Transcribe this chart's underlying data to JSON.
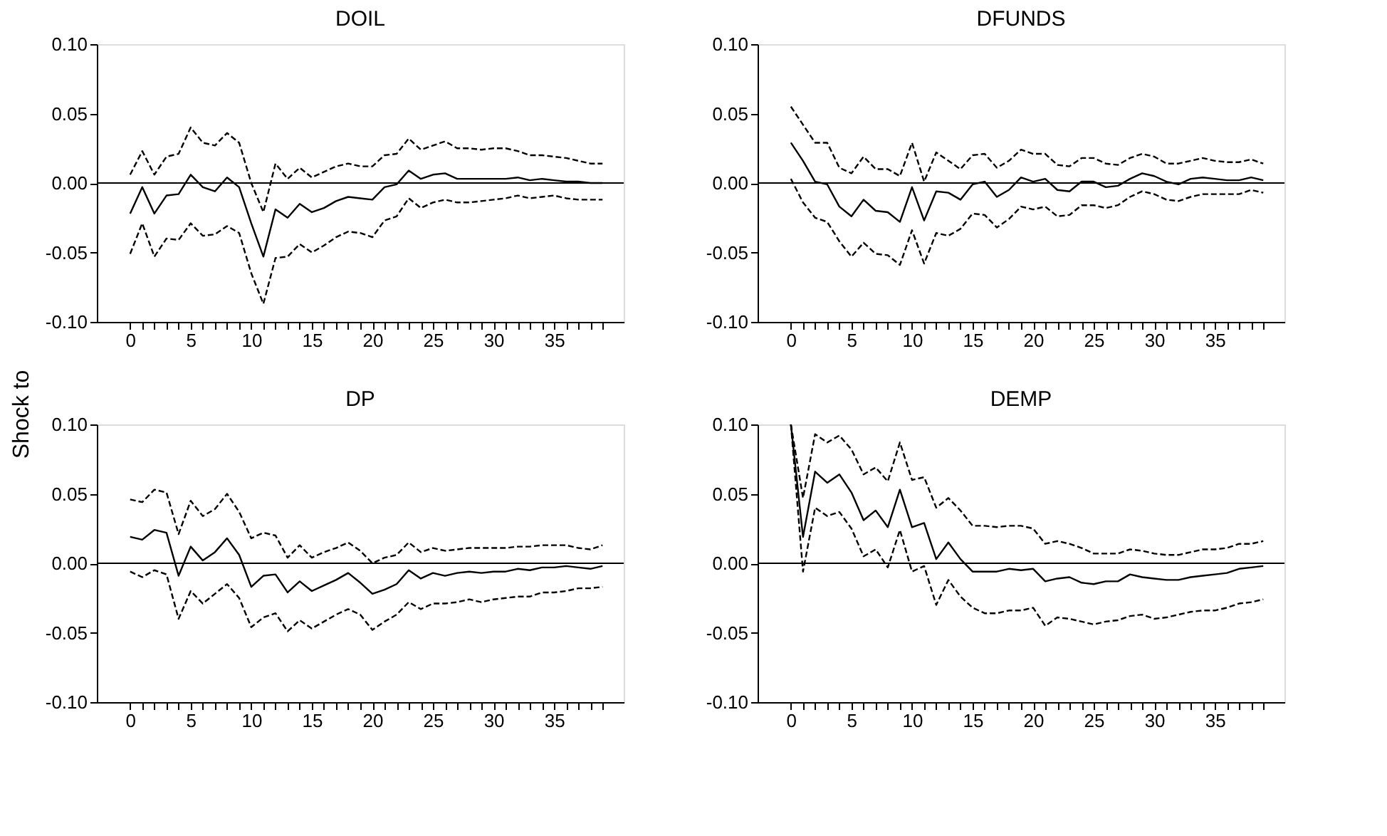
{
  "chart_data": [
    {
      "type": "line",
      "title": "DOIL",
      "ylabel": "Shock to",
      "x": [
        0,
        1,
        2,
        3,
        4,
        5,
        6,
        7,
        8,
        9,
        10,
        11,
        12,
        13,
        14,
        15,
        16,
        17,
        18,
        19,
        20,
        21,
        22,
        23,
        24,
        25,
        26,
        27,
        28,
        29,
        30,
        31,
        32,
        33,
        34,
        35,
        36,
        37,
        38,
        39
      ],
      "xlim": [
        -2.75,
        40.75
      ],
      "ylim": [
        -0.1,
        0.1
      ],
      "yticks": [
        {
          "value": -0.1,
          "label": "-0.10"
        },
        {
          "value": -0.05,
          "label": "-0.05"
        },
        {
          "value": 0,
          "label": "0.00"
        },
        {
          "value": 0.05,
          "label": "0.05"
        },
        {
          "value": 0.1,
          "label": "0.10"
        }
      ],
      "xticks": [
        0,
        {
          "value": 1,
          "label": null
        },
        {
          "value": 2,
          "label": null
        },
        {
          "value": 3,
          "label": null
        },
        {
          "value": 4,
          "label": null
        },
        5,
        {
          "value": 6,
          "label": null
        },
        {
          "value": 7,
          "label": null
        },
        {
          "value": 8,
          "label": null
        },
        {
          "value": 9,
          "label": null
        },
        10,
        {
          "value": 11,
          "label": null
        },
        {
          "value": 12,
          "label": null
        },
        {
          "value": 13,
          "label": null
        },
        {
          "value": 14,
          "label": null
        },
        15,
        {
          "value": 16,
          "label": null
        },
        {
          "value": 17,
          "label": null
        },
        {
          "value": 18,
          "label": null
        },
        {
          "value": 19,
          "label": null
        },
        20,
        {
          "value": 21,
          "label": null
        },
        {
          "value": 22,
          "label": null
        },
        {
          "value": 23,
          "label": null
        },
        {
          "value": 24,
          "label": null
        },
        25,
        {
          "value": 26,
          "label": null
        },
        {
          "value": 27,
          "label": null
        },
        {
          "value": 28,
          "label": null
        },
        {
          "value": 29,
          "label": null
        },
        30,
        {
          "value": 31,
          "label": null
        },
        {
          "value": 32,
          "label": null
        },
        {
          "value": 33,
          "label": null
        },
        {
          "value": 34,
          "label": null
        },
        35,
        {
          "value": 36,
          "label": null
        },
        {
          "value": 37,
          "label": null
        },
        {
          "value": 38,
          "label": null
        },
        {
          "value": 39,
          "label": null
        }
      ],
      "grid": false,
      "legend": false,
      "marker": "none",
      "ref_lines": [
        {
          "axis": "y",
          "value": 0,
          "color": "#000000"
        }
      ],
      "series": [
        {
          "color": "#000000",
          "line_style": "solid",
          "values": [
            -0.022,
            -0.003,
            -0.022,
            -0.009,
            -0.008,
            0.006,
            -0.003,
            -0.006,
            0.004,
            -0.003,
            -0.029,
            -0.053,
            -0.019,
            -0.025,
            -0.015,
            -0.021,
            -0.018,
            -0.013,
            -0.01,
            -0.011,
            -0.012,
            -0.003,
            -0.001,
            0.009,
            0.003,
            0.006,
            0.007,
            0.003,
            0.003,
            0.003,
            0.003,
            0.003,
            0.004,
            0.002,
            0.003,
            0.002,
            0.001,
            0.001,
            0.0,
            0.0
          ]
        },
        {
          "color": "#000000",
          "line_style": "dashed",
          "values": [
            0.006,
            0.023,
            0.006,
            0.019,
            0.021,
            0.04,
            0.029,
            0.027,
            0.036,
            0.029,
            0.0,
            -0.021,
            0.014,
            0.003,
            0.011,
            0.004,
            0.008,
            0.012,
            0.014,
            0.012,
            0.012,
            0.02,
            0.021,
            0.032,
            0.024,
            0.027,
            0.03,
            0.025,
            0.025,
            0.024,
            0.025,
            0.025,
            0.023,
            0.02,
            0.02,
            0.019,
            0.018,
            0.016,
            0.014,
            0.014
          ]
        },
        {
          "color": "#000000",
          "line_style": "dashed",
          "values": [
            -0.051,
            -0.029,
            -0.053,
            -0.04,
            -0.041,
            -0.029,
            -0.038,
            -0.037,
            -0.031,
            -0.036,
            -0.065,
            -0.087,
            -0.054,
            -0.053,
            -0.044,
            -0.05,
            -0.045,
            -0.039,
            -0.035,
            -0.036,
            -0.039,
            -0.027,
            -0.024,
            -0.011,
            -0.018,
            -0.014,
            -0.012,
            -0.014,
            -0.014,
            -0.013,
            -0.012,
            -0.011,
            -0.009,
            -0.011,
            -0.01,
            -0.009,
            -0.011,
            -0.012,
            -0.012,
            -0.012
          ]
        }
      ]
    },
    {
      "type": "line",
      "title": "DFUNDS",
      "x": [
        0,
        1,
        2,
        3,
        4,
        5,
        6,
        7,
        8,
        9,
        10,
        11,
        12,
        13,
        14,
        15,
        16,
        17,
        18,
        19,
        20,
        21,
        22,
        23,
        24,
        25,
        26,
        27,
        28,
        29,
        30,
        31,
        32,
        33,
        34,
        35,
        36,
        37,
        38,
        39
      ],
      "xlim": [
        -2.75,
        40.75
      ],
      "ylim": [
        -0.1,
        0.1
      ],
      "yticks": [
        {
          "value": -0.1,
          "label": "-0.10"
        },
        {
          "value": -0.05,
          "label": "-0.05"
        },
        {
          "value": 0,
          "label": "0.00"
        },
        {
          "value": 0.05,
          "label": "0.05"
        },
        {
          "value": 0.1,
          "label": "0.10"
        }
      ],
      "xticks": [
        0,
        {
          "value": 1,
          "label": null
        },
        {
          "value": 2,
          "label": null
        },
        {
          "value": 3,
          "label": null
        },
        {
          "value": 4,
          "label": null
        },
        5,
        {
          "value": 6,
          "label": null
        },
        {
          "value": 7,
          "label": null
        },
        {
          "value": 8,
          "label": null
        },
        {
          "value": 9,
          "label": null
        },
        10,
        {
          "value": 11,
          "label": null
        },
        {
          "value": 12,
          "label": null
        },
        {
          "value": 13,
          "label": null
        },
        {
          "value": 14,
          "label": null
        },
        15,
        {
          "value": 16,
          "label": null
        },
        {
          "value": 17,
          "label": null
        },
        {
          "value": 18,
          "label": null
        },
        {
          "value": 19,
          "label": null
        },
        20,
        {
          "value": 21,
          "label": null
        },
        {
          "value": 22,
          "label": null
        },
        {
          "value": 23,
          "label": null
        },
        {
          "value": 24,
          "label": null
        },
        25,
        {
          "value": 26,
          "label": null
        },
        {
          "value": 27,
          "label": null
        },
        {
          "value": 28,
          "label": null
        },
        {
          "value": 29,
          "label": null
        },
        30,
        {
          "value": 31,
          "label": null
        },
        {
          "value": 32,
          "label": null
        },
        {
          "value": 33,
          "label": null
        },
        {
          "value": 34,
          "label": null
        },
        35,
        {
          "value": 36,
          "label": null
        },
        {
          "value": 37,
          "label": null
        },
        {
          "value": 38,
          "label": null
        },
        {
          "value": 39,
          "label": null
        }
      ],
      "grid": false,
      "legend": false,
      "marker": "none",
      "ref_lines": [
        {
          "axis": "y",
          "value": 0,
          "color": "#000000"
        }
      ],
      "series": [
        {
          "color": "#000000",
          "line_style": "solid",
          "values": [
            0.029,
            0.016,
            0.001,
            -0.001,
            -0.017,
            -0.024,
            -0.012,
            -0.02,
            -0.021,
            -0.028,
            -0.003,
            -0.027,
            -0.006,
            -0.007,
            -0.012,
            -0.001,
            0.001,
            -0.01,
            -0.005,
            0.004,
            0.001,
            0.003,
            -0.005,
            -0.006,
            0.001,
            0.001,
            -0.003,
            -0.002,
            0.003,
            0.007,
            0.005,
            0.001,
            -0.001,
            0.003,
            0.004,
            0.003,
            0.002,
            0.002,
            0.004,
            0.002
          ]
        },
        {
          "color": "#000000",
          "line_style": "dashed",
          "values": [
            0.055,
            0.042,
            0.029,
            0.029,
            0.011,
            0.007,
            0.019,
            0.01,
            0.01,
            0.005,
            0.029,
            0.001,
            0.022,
            0.016,
            0.01,
            0.02,
            0.021,
            0.011,
            0.016,
            0.024,
            0.021,
            0.021,
            0.013,
            0.012,
            0.018,
            0.018,
            0.014,
            0.013,
            0.018,
            0.021,
            0.019,
            0.014,
            0.014,
            0.016,
            0.018,
            0.016,
            0.015,
            0.015,
            0.017,
            0.014
          ]
        },
        {
          "color": "#000000",
          "line_style": "dashed",
          "values": [
            0.003,
            -0.014,
            -0.025,
            -0.028,
            -0.042,
            -0.053,
            -0.043,
            -0.051,
            -0.052,
            -0.059,
            -0.034,
            -0.058,
            -0.036,
            -0.038,
            -0.033,
            -0.022,
            -0.023,
            -0.032,
            -0.026,
            -0.017,
            -0.019,
            -0.017,
            -0.024,
            -0.023,
            -0.016,
            -0.016,
            -0.018,
            -0.016,
            -0.01,
            -0.006,
            -0.008,
            -0.012,
            -0.013,
            -0.01,
            -0.008,
            -0.008,
            -0.008,
            -0.008,
            -0.005,
            -0.007
          ]
        }
      ]
    },
    {
      "type": "line",
      "title": "DP",
      "x": [
        0,
        1,
        2,
        3,
        4,
        5,
        6,
        7,
        8,
        9,
        10,
        11,
        12,
        13,
        14,
        15,
        16,
        17,
        18,
        19,
        20,
        21,
        22,
        23,
        24,
        25,
        26,
        27,
        28,
        29,
        30,
        31,
        32,
        33,
        34,
        35,
        36,
        37,
        38,
        39
      ],
      "xlim": [
        -2.75,
        40.75
      ],
      "ylim": [
        -0.1,
        0.1
      ],
      "yticks": [
        {
          "value": -0.1,
          "label": "-0.10"
        },
        {
          "value": -0.05,
          "label": "-0.05"
        },
        {
          "value": 0,
          "label": "0.00"
        },
        {
          "value": 0.05,
          "label": "0.05"
        },
        {
          "value": 0.1,
          "label": "0.10"
        }
      ],
      "xticks": [
        0,
        {
          "value": 1,
          "label": null
        },
        {
          "value": 2,
          "label": null
        },
        {
          "value": 3,
          "label": null
        },
        {
          "value": 4,
          "label": null
        },
        5,
        {
          "value": 6,
          "label": null
        },
        {
          "value": 7,
          "label": null
        },
        {
          "value": 8,
          "label": null
        },
        {
          "value": 9,
          "label": null
        },
        10,
        {
          "value": 11,
          "label": null
        },
        {
          "value": 12,
          "label": null
        },
        {
          "value": 13,
          "label": null
        },
        {
          "value": 14,
          "label": null
        },
        15,
        {
          "value": 16,
          "label": null
        },
        {
          "value": 17,
          "label": null
        },
        {
          "value": 18,
          "label": null
        },
        {
          "value": 19,
          "label": null
        },
        20,
        {
          "value": 21,
          "label": null
        },
        {
          "value": 22,
          "label": null
        },
        {
          "value": 23,
          "label": null
        },
        {
          "value": 24,
          "label": null
        },
        25,
        {
          "value": 26,
          "label": null
        },
        {
          "value": 27,
          "label": null
        },
        {
          "value": 28,
          "label": null
        },
        {
          "value": 29,
          "label": null
        },
        30,
        {
          "value": 31,
          "label": null
        },
        {
          "value": 32,
          "label": null
        },
        {
          "value": 33,
          "label": null
        },
        {
          "value": 34,
          "label": null
        },
        35,
        {
          "value": 36,
          "label": null
        },
        {
          "value": 37,
          "label": null
        },
        {
          "value": 38,
          "label": null
        },
        {
          "value": 39,
          "label": null
        }
      ],
      "grid": false,
      "legend": false,
      "marker": "none",
      "ref_lines": [
        {
          "axis": "y",
          "value": 0,
          "color": "#000000"
        }
      ],
      "series": [
        {
          "color": "#000000",
          "line_style": "solid",
          "values": [
            0.019,
            0.017,
            0.024,
            0.022,
            -0.009,
            0.012,
            0.002,
            0.008,
            0.018,
            0.006,
            -0.017,
            -0.009,
            -0.008,
            -0.021,
            -0.013,
            -0.02,
            -0.016,
            -0.012,
            -0.007,
            -0.014,
            -0.022,
            -0.019,
            -0.015,
            -0.005,
            -0.011,
            -0.007,
            -0.009,
            -0.007,
            -0.006,
            -0.007,
            -0.006,
            -0.006,
            -0.004,
            -0.005,
            -0.003,
            -0.003,
            -0.002,
            -0.003,
            -0.004,
            -0.002
          ]
        },
        {
          "color": "#000000",
          "line_style": "dashed",
          "values": [
            0.046,
            0.044,
            0.053,
            0.051,
            0.021,
            0.045,
            0.034,
            0.039,
            0.05,
            0.037,
            0.018,
            0.022,
            0.02,
            0.004,
            0.013,
            0.004,
            0.008,
            0.011,
            0.015,
            0.009,
            0.0,
            0.004,
            0.006,
            0.015,
            0.008,
            0.011,
            0.009,
            0.01,
            0.011,
            0.011,
            0.011,
            0.011,
            0.012,
            0.012,
            0.013,
            0.013,
            0.013,
            0.011,
            0.01,
            0.013
          ]
        },
        {
          "color": "#000000",
          "line_style": "dashed",
          "values": [
            -0.006,
            -0.01,
            -0.005,
            -0.008,
            -0.04,
            -0.02,
            -0.029,
            -0.022,
            -0.015,
            -0.025,
            -0.046,
            -0.039,
            -0.036,
            -0.049,
            -0.041,
            -0.047,
            -0.042,
            -0.037,
            -0.033,
            -0.037,
            -0.048,
            -0.042,
            -0.037,
            -0.028,
            -0.033,
            -0.029,
            -0.029,
            -0.028,
            -0.026,
            -0.028,
            -0.026,
            -0.025,
            -0.024,
            -0.024,
            -0.021,
            -0.021,
            -0.02,
            -0.018,
            -0.018,
            -0.017
          ]
        }
      ]
    },
    {
      "type": "line",
      "title": "DEMP",
      "x": [
        0,
        1,
        2,
        3,
        4,
        5,
        6,
        7,
        8,
        9,
        10,
        11,
        12,
        13,
        14,
        15,
        16,
        17,
        18,
        19,
        20,
        21,
        22,
        23,
        24,
        25,
        26,
        27,
        28,
        29,
        30,
        31,
        32,
        33,
        34,
        35,
        36,
        37,
        38,
        39
      ],
      "xlim": [
        -2.75,
        40.75
      ],
      "ylim": [
        -0.1,
        0.1
      ],
      "yticks": [
        {
          "value": -0.1,
          "label": "-0.10"
        },
        {
          "value": -0.05,
          "label": "-0.05"
        },
        {
          "value": 0,
          "label": "0.00"
        },
        {
          "value": 0.05,
          "label": "0.05"
        },
        {
          "value": 0.1,
          "label": "0.10"
        }
      ],
      "xticks": [
        0,
        {
          "value": 1,
          "label": null
        },
        {
          "value": 2,
          "label": null
        },
        {
          "value": 3,
          "label": null
        },
        {
          "value": 4,
          "label": null
        },
        5,
        {
          "value": 6,
          "label": null
        },
        {
          "value": 7,
          "label": null
        },
        {
          "value": 8,
          "label": null
        },
        {
          "value": 9,
          "label": null
        },
        10,
        {
          "value": 11,
          "label": null
        },
        {
          "value": 12,
          "label": null
        },
        {
          "value": 13,
          "label": null
        },
        {
          "value": 14,
          "label": null
        },
        15,
        {
          "value": 16,
          "label": null
        },
        {
          "value": 17,
          "label": null
        },
        {
          "value": 18,
          "label": null
        },
        {
          "value": 19,
          "label": null
        },
        20,
        {
          "value": 21,
          "label": null
        },
        {
          "value": 22,
          "label": null
        },
        {
          "value": 23,
          "label": null
        },
        {
          "value": 24,
          "label": null
        },
        25,
        {
          "value": 26,
          "label": null
        },
        {
          "value": 27,
          "label": null
        },
        {
          "value": 28,
          "label": null
        },
        {
          "value": 29,
          "label": null
        },
        30,
        {
          "value": 31,
          "label": null
        },
        {
          "value": 32,
          "label": null
        },
        {
          "value": 33,
          "label": null
        },
        {
          "value": 34,
          "label": null
        },
        35,
        {
          "value": 36,
          "label": null
        },
        {
          "value": 37,
          "label": null
        },
        {
          "value": 38,
          "label": null
        },
        {
          "value": 39,
          "label": null
        }
      ],
      "grid": false,
      "legend": false,
      "marker": "none",
      "ref_lines": [
        {
          "axis": "y",
          "value": 0,
          "color": "#000000"
        }
      ],
      "series": [
        {
          "color": "#000000",
          "line_style": "solid",
          "values": [
            0.1,
            0.019,
            0.066,
            0.058,
            0.064,
            0.051,
            0.031,
            0.038,
            0.026,
            0.053,
            0.026,
            0.029,
            0.003,
            0.015,
            0.003,
            -0.006,
            -0.006,
            -0.006,
            -0.004,
            -0.005,
            -0.004,
            -0.013,
            -0.011,
            -0.01,
            -0.014,
            -0.015,
            -0.013,
            -0.013,
            -0.008,
            -0.01,
            -0.011,
            -0.012,
            -0.012,
            -0.01,
            -0.009,
            -0.008,
            -0.007,
            -0.004,
            -0.003,
            -0.002
          ]
        },
        {
          "color": "#000000",
          "line_style": "dashed",
          "values": [
            0.1,
            0.047,
            0.093,
            0.087,
            0.092,
            0.082,
            0.064,
            0.069,
            0.059,
            0.087,
            0.06,
            0.062,
            0.04,
            0.047,
            0.038,
            0.027,
            0.027,
            0.026,
            0.027,
            0.027,
            0.025,
            0.014,
            0.016,
            0.014,
            0.011,
            0.007,
            0.007,
            0.007,
            0.01,
            0.009,
            0.007,
            0.006,
            0.006,
            0.008,
            0.01,
            0.01,
            0.011,
            0.014,
            0.014,
            0.016
          ]
        },
        {
          "color": "#000000",
          "line_style": "dashed",
          "values": [
            0.1,
            -0.006,
            0.04,
            0.034,
            0.037,
            0.025,
            0.005,
            0.01,
            -0.003,
            0.024,
            -0.006,
            -0.002,
            -0.03,
            -0.012,
            -0.024,
            -0.032,
            -0.036,
            -0.036,
            -0.034,
            -0.034,
            -0.032,
            -0.045,
            -0.039,
            -0.04,
            -0.042,
            -0.044,
            -0.042,
            -0.041,
            -0.038,
            -0.037,
            -0.04,
            -0.039,
            -0.037,
            -0.035,
            -0.034,
            -0.034,
            -0.032,
            -0.029,
            -0.028,
            -0.026
          ]
        }
      ]
    }
  ]
}
